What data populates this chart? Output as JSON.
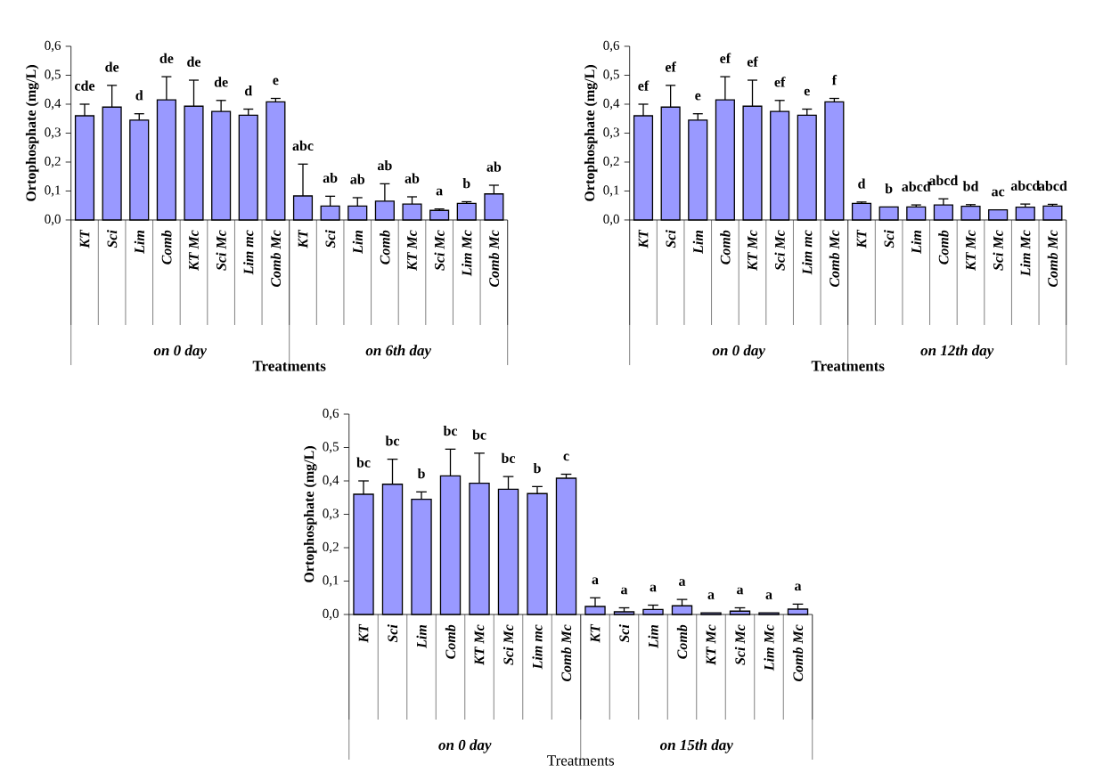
{
  "chart_data": [
    {
      "type": "bar",
      "ylabel": "Ortophosphate (mg/L)",
      "xlabel": "Treatments",
      "color": "#9999ff",
      "categories": [
        "KT",
        "Sci",
        "Lim",
        "Comb",
        "KT Mc",
        "Sci Mc",
        "Lim mc",
        "Comb Mc",
        "KT",
        "Sci",
        "Lim",
        "Comb",
        "KT Mc",
        "Sci Mc",
        "Lim Mc",
        "Comb Mc"
      ],
      "values": [
        0.36,
        0.39,
        0.345,
        0.415,
        0.393,
        0.375,
        0.362,
        0.408,
        0.083,
        0.048,
        0.048,
        0.065,
        0.055,
        0.033,
        0.057,
        0.09
      ],
      "errors": [
        [
          0.36,
          0.4
        ],
        [
          0.39,
          0.465
        ],
        [
          0.345,
          0.367
        ],
        [
          0.415,
          0.495
        ],
        [
          0.393,
          0.483
        ],
        [
          0.375,
          0.413
        ],
        [
          0.362,
          0.383
        ],
        [
          0.408,
          0.42
        ],
        [
          0.083,
          0.193
        ],
        [
          0.048,
          0.082
        ],
        [
          0.048,
          0.077
        ],
        [
          0.065,
          0.125
        ],
        [
          0.055,
          0.08
        ],
        [
          0.033,
          0.038
        ],
        [
          0.057,
          0.063
        ],
        [
          0.09,
          0.12
        ]
      ],
      "value_labels": [
        "cde",
        "de",
        "d",
        "de",
        "de",
        "de",
        "d",
        "e",
        "abc",
        "ab",
        "ab",
        "ab",
        "ab",
        "a",
        "b",
        "ab"
      ],
      "annotations": [
        "on 0 day",
        "on 6th day"
      ],
      "ylim": [
        0,
        0.6
      ],
      "yticks": [
        {
          "value": 0,
          "label": "0,0"
        },
        {
          "value": 0.1,
          "label": "0,1"
        },
        {
          "value": 0.2,
          "label": "0,2"
        },
        {
          "value": 0.3,
          "label": "0,3"
        },
        {
          "value": 0.4,
          "label": "0,4"
        },
        {
          "value": 0.5,
          "label": "0,5"
        },
        {
          "value": 0.6,
          "label": "0,6"
        }
      ]
    },
    {
      "type": "bar",
      "ylabel": "Ortophosphate (mg/L)",
      "xlabel": "Treatments",
      "color": "#9999ff",
      "categories": [
        "KT",
        "Sci",
        "Lim",
        "Comb",
        "KT Mc",
        "Sci Mc",
        "Lim mc",
        "Comb Mc",
        "KT",
        "Sci",
        "Lim",
        "Comb",
        "KT Mc",
        "Sci Mc",
        "Lim Mc",
        "Comb Mc"
      ],
      "values": [
        0.36,
        0.39,
        0.345,
        0.415,
        0.393,
        0.375,
        0.362,
        0.408,
        0.057,
        0.045,
        0.045,
        0.052,
        0.047,
        0.035,
        0.044,
        0.048
      ],
      "errors": [
        [
          0.36,
          0.4
        ],
        [
          0.39,
          0.465
        ],
        [
          0.345,
          0.367
        ],
        [
          0.415,
          0.495
        ],
        [
          0.393,
          0.483
        ],
        [
          0.375,
          0.413
        ],
        [
          0.362,
          0.383
        ],
        [
          0.408,
          0.42
        ],
        [
          0.057,
          0.062
        ],
        null,
        [
          0.045,
          0.052
        ],
        [
          0.052,
          0.073
        ],
        [
          0.047,
          0.053
        ],
        null,
        [
          0.044,
          0.055
        ],
        [
          0.048,
          0.054
        ]
      ],
      "value_labels": [
        "ef",
        "ef",
        "e",
        "ef",
        "ef",
        "ef",
        "e",
        "f",
        "d",
        "b",
        "abcd",
        "abcd",
        "bd",
        "ac",
        "abcd",
        "abcd"
      ],
      "annotations": [
        "on 0 day",
        "on 12th day"
      ],
      "ylim": [
        0,
        0.6
      ],
      "yticks": [
        {
          "value": 0,
          "label": "0,0"
        },
        {
          "value": 0.1,
          "label": "0,1"
        },
        {
          "value": 0.2,
          "label": "0,2"
        },
        {
          "value": 0.3,
          "label": "0,3"
        },
        {
          "value": 0.4,
          "label": "0,4"
        },
        {
          "value": 0.5,
          "label": "0,5"
        },
        {
          "value": 0.6,
          "label": "0,6"
        }
      ]
    },
    {
      "type": "bar",
      "ylabel": "Ortophosphate (mg/L)",
      "xlabel": "Treatments",
      "color": "#9999ff",
      "categories": [
        "KT",
        "Sci",
        "Lim",
        "Comb",
        "KT Mc",
        "Sci Mc",
        "Lim mc",
        "Comb Mc",
        "KT",
        "Sci",
        "Lim",
        "Comb",
        "KT Mc",
        "Sci Mc",
        "Lim Mc",
        "Comb Mc"
      ],
      "values": [
        0.36,
        0.39,
        0.345,
        0.415,
        0.393,
        0.375,
        0.362,
        0.408,
        0.024,
        0.008,
        0.015,
        0.026,
        0.005,
        0.01,
        0.005,
        0.016
      ],
      "errors": [
        [
          0.36,
          0.4
        ],
        [
          0.39,
          0.465
        ],
        [
          0.345,
          0.367
        ],
        [
          0.415,
          0.495
        ],
        [
          0.393,
          0.483
        ],
        [
          0.375,
          0.413
        ],
        [
          0.362,
          0.383
        ],
        [
          0.408,
          0.42
        ],
        [
          0.024,
          0.05
        ],
        [
          0.008,
          0.02
        ],
        [
          0.015,
          0.028
        ],
        [
          0.026,
          0.045
        ],
        null,
        [
          0.01,
          0.02
        ],
        null,
        [
          0.016,
          0.031
        ]
      ],
      "value_labels": [
        "bc",
        "bc",
        "b",
        "bc",
        "bc",
        "bc",
        "b",
        "c",
        "a",
        "a",
        "a",
        "a",
        "a",
        "a",
        "a",
        "a"
      ],
      "annotations": [
        "on 0 day",
        "on 15th day"
      ],
      "ylim": [
        0,
        0.6
      ],
      "yticks": [
        {
          "value": 0,
          "label": "0,0"
        },
        {
          "value": 0.1,
          "label": "0,1"
        },
        {
          "value": 0.2,
          "label": "0,2"
        },
        {
          "value": 0.3,
          "label": "0,3"
        },
        {
          "value": 0.4,
          "label": "0,4"
        },
        {
          "value": 0.5,
          "label": "0,5"
        },
        {
          "value": 0.6,
          "label": "0,6"
        }
      ]
    }
  ]
}
